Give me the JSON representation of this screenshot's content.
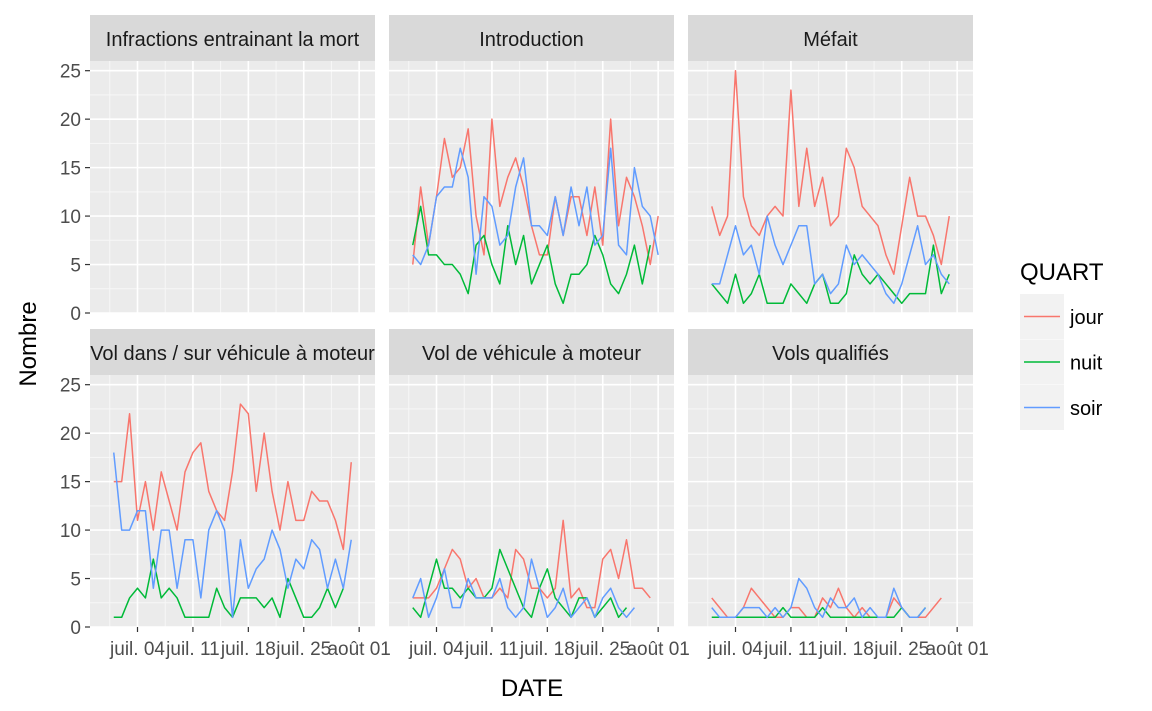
{
  "chart_data": {
    "type": "line",
    "xlabel": "DATE",
    "ylabel": "Nombre",
    "ylim": [
      0,
      26
    ],
    "y_ticks": [
      0,
      5,
      10,
      15,
      20,
      25
    ],
    "x_range": [
      -3,
      33
    ],
    "x_ticks": [
      {
        "label": "juil. 04",
        "day": 3
      },
      {
        "label": "juil. 11",
        "day": 10
      },
      {
        "label": "juil. 18",
        "day": 17
      },
      {
        "label": "juil. 25",
        "day": 24
      },
      {
        "label": "août 01",
        "day": 31
      }
    ],
    "grid": true,
    "legend": {
      "title": "QUART",
      "placement": "right",
      "entries": [
        {
          "name": "jour",
          "color": "#F8766D"
        },
        {
          "name": "nuit",
          "color": "#00BA38"
        },
        {
          "name": "soir",
          "color": "#619CFF"
        }
      ]
    },
    "facet_layout": {
      "rows": 2,
      "cols": 3
    },
    "panels": [
      {
        "title": "Infractions entrainant la mort",
        "series": []
      },
      {
        "title": "Introduction",
        "series": [
          {
            "name": "jour",
            "start_day": 0,
            "values": [
              5,
              13,
              7,
              12,
              18,
              14,
              15,
              19,
              10,
              6,
              20,
              11,
              14,
              16,
              13,
              9,
              6,
              6,
              12,
              8,
              12,
              12,
              8,
              13,
              7,
              20,
              9,
              14,
              12,
              9,
              5,
              10
            ]
          },
          {
            "name": "nuit",
            "start_day": 0,
            "values": [
              7,
              11,
              6,
              6,
              5,
              5,
              4,
              2,
              7,
              8,
              5,
              3,
              9,
              5,
              8,
              3,
              5,
              7,
              3,
              1,
              4,
              4,
              5,
              8,
              6,
              3,
              2,
              4,
              7,
              3,
              7
            ]
          },
          {
            "name": "soir",
            "start_day": 0,
            "values": [
              6,
              5,
              7,
              12,
              13,
              13,
              17,
              14,
              4,
              12,
              11,
              7,
              8,
              13,
              16,
              9,
              9,
              8,
              12,
              8,
              13,
              9,
              13,
              7,
              8,
              17,
              7,
              6,
              15,
              11,
              10,
              6
            ]
          }
        ]
      },
      {
        "title": "Méfait",
        "series": [
          {
            "name": "jour",
            "start_day": 0,
            "values": [
              11,
              8,
              10,
              25,
              12,
              9,
              8,
              10,
              11,
              10,
              23,
              11,
              17,
              11,
              14,
              9,
              10,
              17,
              15,
              11,
              10,
              9,
              6,
              4,
              9,
              14,
              10,
              10,
              8,
              5,
              10
            ]
          },
          {
            "name": "nuit",
            "start_day": 0,
            "values": [
              3,
              2,
              1,
              4,
              1,
              2,
              4,
              1,
              1,
              1,
              3,
              2,
              1,
              3,
              4,
              1,
              1,
              2,
              6,
              4,
              3,
              4,
              3,
              2,
              1,
              2,
              2,
              2,
              7,
              2,
              4
            ]
          },
          {
            "name": "soir",
            "start_day": 0,
            "values": [
              3,
              3,
              6,
              9,
              6,
              7,
              4,
              10,
              7,
              5,
              7,
              9,
              9,
              3,
              4,
              2,
              3,
              7,
              5,
              6,
              5,
              4,
              2,
              1,
              3,
              6,
              9,
              5,
              6,
              4,
              3
            ]
          }
        ]
      },
      {
        "title": "Vol dans / sur véhicule à moteur",
        "series": [
          {
            "name": "jour",
            "start_day": 0,
            "values": [
              15,
              15,
              22,
              11,
              15,
              10,
              16,
              13,
              10,
              16,
              18,
              19,
              14,
              12,
              11,
              16,
              23,
              22,
              14,
              20,
              14,
              10,
              15,
              11,
              11,
              14,
              13,
              13,
              11,
              8,
              17
            ]
          },
          {
            "name": "nuit",
            "start_day": 0,
            "values": [
              1,
              1,
              3,
              4,
              3,
              7,
              3,
              4,
              3,
              1,
              1,
              1,
              1,
              4,
              2,
              1,
              3,
              3,
              3,
              2,
              3,
              1,
              5,
              3,
              1,
              1,
              2,
              4,
              2,
              4
            ]
          },
          {
            "name": "soir",
            "start_day": 0,
            "values": [
              18,
              10,
              10,
              12,
              12,
              4,
              10,
              10,
              4,
              9,
              9,
              3,
              10,
              12,
              10,
              1,
              9,
              4,
              6,
              7,
              10,
              8,
              4,
              7,
              6,
              9,
              8,
              4,
              7,
              4,
              9
            ]
          }
        ]
      },
      {
        "title": "Vol de véhicule à moteur",
        "series": [
          {
            "name": "jour",
            "start_day": 0,
            "values": [
              3,
              3,
              3,
              4,
              6,
              8,
              7,
              4,
              5,
              3,
              3,
              4,
              3,
              8,
              7,
              4,
              4,
              3,
              4,
              11,
              3,
              4,
              2,
              2,
              7,
              8,
              5,
              9,
              4,
              4,
              3
            ]
          },
          {
            "name": "nuit",
            "start_day": 0,
            "values": [
              2,
              1,
              4,
              7,
              4,
              4,
              3,
              4,
              3,
              3,
              4,
              8,
              6,
              4,
              2,
              1,
              4,
              6,
              3,
              2,
              1,
              3,
              3,
              1,
              2,
              3,
              1,
              2
            ]
          },
          {
            "name": "soir",
            "start_day": 0,
            "values": [
              3,
              5,
              1,
              3,
              6,
              2,
              2,
              5,
              3,
              3,
              3,
              5,
              2,
              1,
              2,
              7,
              4,
              1,
              2,
              4,
              1,
              2,
              3,
              1,
              3,
              4,
              2,
              1,
              2
            ]
          }
        ]
      },
      {
        "title": "Vols qualifiés",
        "series": [
          {
            "name": "jour",
            "start_day": 0,
            "values": [
              3,
              2,
              1,
              1,
              2,
              4,
              3,
              2,
              1,
              1,
              2,
              2,
              1,
              1,
              3,
              2,
              4,
              2,
              1,
              2,
              1,
              1,
              1,
              3,
              2,
              1,
              1,
              1,
              2,
              3
            ]
          },
          {
            "name": "nuit",
            "start_day": 0,
            "values": [
              1,
              1,
              1,
              1,
              1,
              1,
              1,
              1,
              1,
              2,
              1,
              1,
              1,
              1,
              2,
              1,
              1,
              1,
              1,
              1,
              1,
              1,
              1,
              1,
              2,
              1,
              1,
              2
            ]
          },
          {
            "name": "soir",
            "start_day": 0,
            "values": [
              2,
              1,
              1,
              1,
              2,
              2,
              2,
              1,
              2,
              1,
              2,
              5,
              4,
              2,
              1,
              3,
              2,
              2,
              3,
              1,
              2,
              1,
              1,
              4,
              2,
              1,
              1,
              2
            ]
          }
        ]
      }
    ]
  }
}
